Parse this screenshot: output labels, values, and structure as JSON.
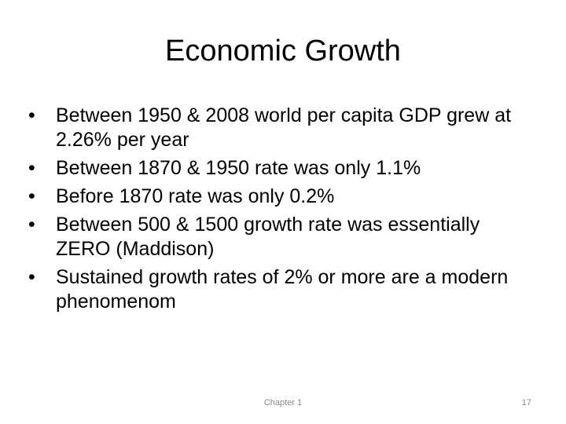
{
  "header": {
    "title": "Economic Growth"
  },
  "bullets": [
    "Between 1950 & 2008 world per capita GDP grew at 2.26% per year",
    "Between 1870 & 1950 rate was only 1.1%",
    "Before 1870 rate was only 0.2%",
    "Between 500 & 1500 growth rate was essentially ZERO (Maddison)",
    "Sustained growth rates of 2% or more are a modern phenomenom"
  ],
  "footer": {
    "chapter": "Chapter 1",
    "page": "17"
  }
}
